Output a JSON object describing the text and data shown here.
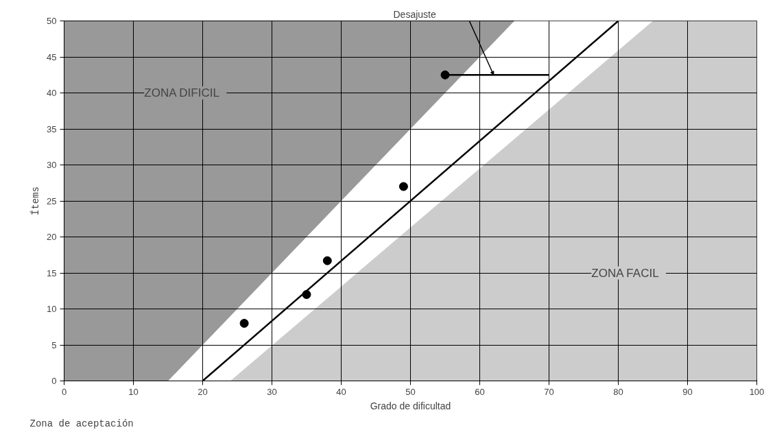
{
  "chart_data": {
    "type": "scatter",
    "xlabel": "Grado de dificultad",
    "ylabel": "Ítems",
    "xlim": [
      0,
      100
    ],
    "ylim": [
      0,
      50
    ],
    "xticks": [
      0,
      10,
      20,
      30,
      40,
      50,
      60,
      70,
      80,
      90,
      100
    ],
    "yticks": [
      0,
      5,
      10,
      15,
      20,
      25,
      30,
      35,
      40,
      45,
      50
    ],
    "grid": true,
    "series": [
      {
        "type": "area",
        "color": "#ffffff",
        "x": [
          15,
          65,
          85
        ],
        "values": [
          0,
          50,
          50
        ]
      },
      {
        "type": "area",
        "color": "#cccccc",
        "x": [
          24,
          85,
          100
        ],
        "values": [
          0,
          50,
          50
        ]
      },
      {
        "type": "line",
        "color": "#000000",
        "x": [
          20,
          80
        ],
        "values": [
          0,
          50
        ]
      },
      {
        "type": "line",
        "color": "#000000",
        "x": [
          55,
          70
        ],
        "values": [
          42.5,
          42.5
        ]
      },
      {
        "color": "#000000",
        "marker": "circle",
        "x": [
          26,
          35,
          38,
          49,
          55
        ],
        "values": [
          8,
          12,
          16.7,
          27,
          42.5
        ]
      }
    ],
    "annotations": [
      "ZONA DIFICIL",
      "ZONA FACIL",
      "Desajuste",
      "Zona de aceptación"
    ]
  }
}
